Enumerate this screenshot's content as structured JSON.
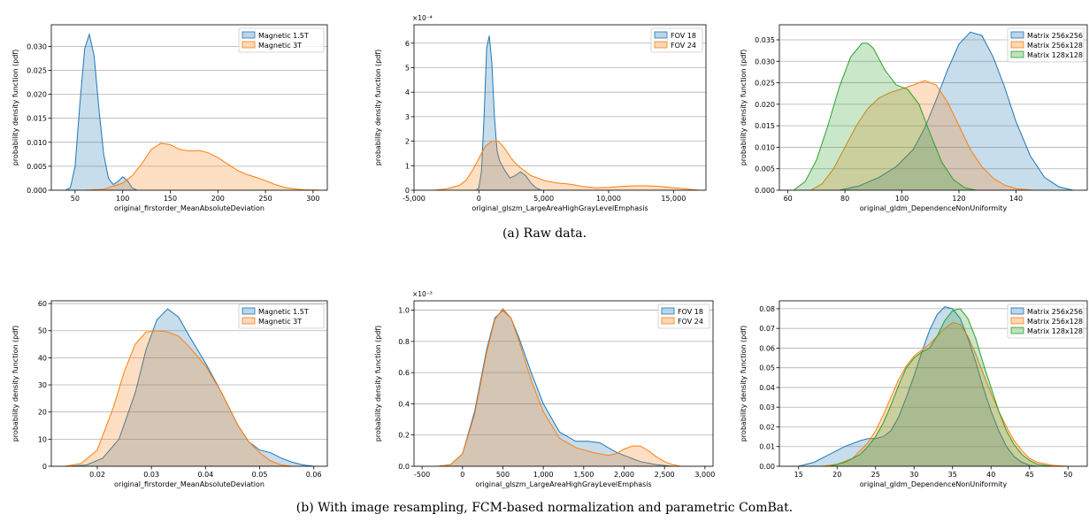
{
  "captions": {
    "a": "(a) Raw data.",
    "b": "(b) With image resampling, FCM-based normalization and parametric ComBat."
  },
  "chart_data": [
    {
      "type": "area",
      "xlabel": "original_firstorder_MeanAbsoluteDeviation",
      "ylabel": "probability density function (pdf)",
      "xlim": [
        25,
        315
      ],
      "ylim": [
        0,
        0.0345
      ],
      "xticks": [
        50,
        100,
        150,
        200,
        250,
        300
      ],
      "xtick_labels": [
        "50",
        "100",
        "150",
        "200",
        "250",
        "300"
      ],
      "yticks": [
        0,
        0.005,
        0.01,
        0.015,
        0.02,
        0.025,
        0.03
      ],
      "ytick_labels": [
        "0.000",
        "0.005",
        "0.010",
        "0.015",
        "0.020",
        "0.025",
        "0.030"
      ],
      "y_multiplier": "",
      "grid": "horizontal",
      "legend_position": "top-right",
      "series": [
        {
          "name": "Magnetic 1.5T",
          "color": "#1f77b4",
          "x": [
            40,
            45,
            50,
            55,
            60,
            65,
            70,
            75,
            80,
            85,
            90,
            95,
            100,
            105,
            110,
            115
          ],
          "y": [
            0,
            0.0005,
            0.005,
            0.018,
            0.0295,
            0.0325,
            0.028,
            0.017,
            0.0075,
            0.0025,
            0.0012,
            0.0018,
            0.0028,
            0.002,
            0.0005,
            0
          ]
        },
        {
          "name": "Magnetic 3T",
          "color": "#ff7f0e",
          "x": [
            60,
            80,
            100,
            110,
            120,
            130,
            140,
            150,
            160,
            170,
            180,
            190,
            200,
            210,
            220,
            230,
            240,
            250,
            260,
            270,
            280,
            290,
            300,
            310
          ],
          "y": [
            0,
            0.0002,
            0.0015,
            0.003,
            0.0055,
            0.0085,
            0.0098,
            0.0095,
            0.0085,
            0.0082,
            0.0083,
            0.0078,
            0.0068,
            0.0055,
            0.0042,
            0.0033,
            0.0027,
            0.002,
            0.0012,
            0.0006,
            0.0003,
            0.0001,
            3e-05,
            0
          ]
        }
      ]
    },
    {
      "type": "area",
      "xlabel": "original_glszm_LargeAreaHighGrayLevelEmphasis",
      "ylabel": "probability density function (pdf)",
      "xlim": [
        -5000,
        17500
      ],
      "ylim": [
        0,
        6.75
      ],
      "xticks": [
        -5000,
        0,
        5000,
        10000,
        15000
      ],
      "xtick_labels": [
        "-5,000",
        "0",
        "5,000",
        "10,000",
        "15,000"
      ],
      "yticks": [
        0,
        1,
        2,
        3,
        4,
        5,
        6
      ],
      "ytick_labels": [
        "0",
        "1",
        "2",
        "3",
        "4",
        "5",
        "6"
      ],
      "y_multiplier": "×10⁻⁴",
      "grid": "horizontal",
      "legend_position": "top-right",
      "series": [
        {
          "name": "FOV 18",
          "color": "#1f77b4",
          "x": [
            -200,
            0,
            200,
            400,
            600,
            800,
            1000,
            1200,
            1400,
            1600,
            1800,
            2000,
            2400,
            2800,
            3200,
            3600,
            4000,
            4400,
            4800
          ],
          "y": [
            0,
            0.1,
            0.8,
            3.0,
            5.8,
            6.3,
            5.2,
            3.0,
            1.6,
            1.2,
            1.0,
            0.8,
            0.5,
            0.6,
            0.75,
            0.6,
            0.3,
            0.1,
            0
          ]
        },
        {
          "name": "FOV 24",
          "color": "#ff7f0e",
          "x": [
            -3500,
            -2500,
            -1500,
            -1000,
            -500,
            0,
            500,
            1000,
            1500,
            2000,
            2500,
            3000,
            4000,
            5000,
            6000,
            7000,
            8000,
            9000,
            10000,
            11000,
            12000,
            13000,
            14000,
            15000,
            16000,
            17000
          ],
          "y": [
            0,
            0.05,
            0.2,
            0.4,
            0.8,
            1.3,
            1.8,
            2.0,
            2.0,
            1.7,
            1.3,
            1.0,
            0.6,
            0.4,
            0.3,
            0.25,
            0.15,
            0.1,
            0.12,
            0.15,
            0.18,
            0.18,
            0.15,
            0.1,
            0.05,
            0
          ]
        }
      ]
    },
    {
      "type": "area",
      "xlabel": "original_gldm_DependenceNonUniformity",
      "ylabel": "probability density function (pdf)",
      "xlim": [
        57,
        165
      ],
      "ylim": [
        0,
        0.0385
      ],
      "xticks": [
        60,
        80,
        100,
        120,
        140
      ],
      "xtick_labels": [
        "60",
        "80",
        "100",
        "120",
        "140"
      ],
      "yticks": [
        0,
        0.005,
        0.01,
        0.015,
        0.02,
        0.025,
        0.03,
        0.035
      ],
      "ytick_labels": [
        "0.000",
        "0.005",
        "0.010",
        "0.015",
        "0.020",
        "0.025",
        "0.030",
        "0.035"
      ],
      "y_multiplier": "",
      "grid": "horizontal",
      "legend_position": "top-right",
      "series": [
        {
          "name": "Matrix 256x256",
          "color": "#1f77b4",
          "x": [
            78,
            85,
            92,
            98,
            104,
            108,
            112,
            116,
            120,
            124,
            128,
            132,
            136,
            140,
            145,
            150,
            155,
            160
          ],
          "y": [
            0,
            0.001,
            0.003,
            0.0055,
            0.0095,
            0.0145,
            0.021,
            0.028,
            0.034,
            0.0368,
            0.036,
            0.031,
            0.024,
            0.016,
            0.008,
            0.003,
            0.0008,
            0
          ]
        },
        {
          "name": "Matrix 256x128",
          "color": "#ff7f0e",
          "x": [
            68,
            72,
            76,
            80,
            84,
            88,
            92,
            96,
            100,
            104,
            108,
            112,
            116,
            120,
            124,
            128,
            132,
            136,
            140,
            146
          ],
          "y": [
            0,
            0.0015,
            0.005,
            0.01,
            0.015,
            0.019,
            0.0215,
            0.0228,
            0.0236,
            0.0245,
            0.0255,
            0.0245,
            0.0205,
            0.015,
            0.0095,
            0.0055,
            0.0028,
            0.0012,
            0.0004,
            0
          ]
        },
        {
          "name": "Matrix 128x128",
          "color": "#2ca02c",
          "x": [
            62,
            66,
            70,
            74,
            78,
            82,
            86,
            88,
            90,
            94,
            98,
            102,
            106,
            110,
            114,
            118,
            122,
            126
          ],
          "y": [
            0,
            0.002,
            0.007,
            0.015,
            0.024,
            0.031,
            0.0342,
            0.0342,
            0.033,
            0.028,
            0.0245,
            0.0235,
            0.02,
            0.013,
            0.0065,
            0.0025,
            0.0006,
            0
          ]
        }
      ]
    },
    {
      "type": "area",
      "xlabel": "original_firstorder_MeanAbsoluteDeviation",
      "ylabel": "probability density function (pdf)",
      "xlim": [
        0.0115,
        0.0625
      ],
      "ylim": [
        0,
        61
      ],
      "xticks": [
        0.02,
        0.03,
        0.04,
        0.05,
        0.06
      ],
      "xtick_labels": [
        "0.02",
        "0.03",
        "0.04",
        "0.05",
        "0.06"
      ],
      "yticks": [
        0,
        10,
        20,
        30,
        40,
        50,
        60
      ],
      "ytick_labels": [
        "0",
        "10",
        "20",
        "30",
        "40",
        "50",
        "60"
      ],
      "y_multiplier": "",
      "grid": "horizontal",
      "legend_position": "top-right",
      "series": [
        {
          "name": "Magnetic 1.5T",
          "color": "#1f77b4",
          "x": [
            0.015,
            0.018,
            0.021,
            0.024,
            0.027,
            0.029,
            0.031,
            0.033,
            0.035,
            0.037,
            0.04,
            0.043,
            0.046,
            0.048,
            0.05,
            0.052,
            0.054,
            0.056,
            0.058,
            0.06
          ],
          "y": [
            0,
            0.5,
            3,
            10,
            27,
            43,
            54,
            58,
            55,
            48,
            38,
            27,
            15,
            9,
            6,
            5,
            3,
            1.5,
            0.5,
            0
          ]
        },
        {
          "name": "Magnetic 3T",
          "color": "#ff7f0e",
          "x": [
            0.014,
            0.017,
            0.02,
            0.023,
            0.025,
            0.027,
            0.029,
            0.031,
            0.033,
            0.035,
            0.037,
            0.04,
            0.043,
            0.046,
            0.048,
            0.05,
            0.052,
            0.054,
            0.056
          ],
          "y": [
            0,
            1,
            6,
            22,
            35,
            45,
            49.5,
            50,
            49.5,
            48,
            44,
            37,
            27,
            15,
            9,
            5,
            2,
            0.5,
            0
          ]
        }
      ]
    },
    {
      "type": "area",
      "xlabel": "original_glszm_LargeAreaHighGrayLevelEmphasis",
      "ylabel": "probability density function (pdf)",
      "xlim": [
        -600,
        3100
      ],
      "ylim": [
        0,
        1.06
      ],
      "xticks": [
        -500,
        0,
        500,
        1000,
        1500,
        2000,
        2500,
        3000
      ],
      "xtick_labels": [
        "-500",
        "0",
        "500",
        "1,000",
        "1,500",
        "2,000",
        "2,500",
        "3,000"
      ],
      "yticks": [
        0,
        0.2,
        0.4,
        0.6,
        0.8,
        1.0
      ],
      "ytick_labels": [
        "0.0",
        "0.2",
        "0.4",
        "0.6",
        "0.8",
        "1.0"
      ],
      "y_multiplier": "×10⁻³",
      "grid": "horizontal",
      "legend_position": "top-right",
      "series": [
        {
          "name": "FOV 18",
          "color": "#1f77b4",
          "x": [
            -300,
            -150,
            0,
            150,
            300,
            400,
            500,
            600,
            700,
            850,
            1000,
            1200,
            1400,
            1550,
            1700,
            1800,
            1900,
            2000,
            2100,
            2200,
            2400,
            2600
          ],
          "y": [
            0,
            0.01,
            0.08,
            0.35,
            0.75,
            0.95,
            1.0,
            0.95,
            0.82,
            0.6,
            0.4,
            0.22,
            0.16,
            0.16,
            0.15,
            0.12,
            0.09,
            0.07,
            0.05,
            0.03,
            0.01,
            0
          ]
        },
        {
          "name": "FOV 24",
          "color": "#ff7f0e",
          "x": [
            -300,
            -150,
            0,
            150,
            300,
            400,
            500,
            600,
            700,
            850,
            1000,
            1200,
            1400,
            1600,
            1800,
            1900,
            2000,
            2100,
            2200,
            2300,
            2400,
            2500,
            2600,
            2700
          ],
          "y": [
            0,
            0.01,
            0.08,
            0.33,
            0.73,
            0.94,
            1.01,
            0.95,
            0.8,
            0.55,
            0.35,
            0.18,
            0.12,
            0.09,
            0.07,
            0.08,
            0.11,
            0.13,
            0.13,
            0.1,
            0.06,
            0.03,
            0.01,
            0
          ]
        }
      ]
    },
    {
      "type": "area",
      "xlabel": "original_gldm_DependenceNonUniformity",
      "ylabel": "probability density function (pdf)",
      "xlim": [
        12.5,
        52.5
      ],
      "ylim": [
        0,
        0.084
      ],
      "xticks": [
        15,
        20,
        25,
        30,
        35,
        40,
        45,
        50
      ],
      "xtick_labels": [
        "15",
        "20",
        "25",
        "30",
        "35",
        "40",
        "45",
        "50"
      ],
      "yticks": [
        0,
        0.01,
        0.02,
        0.03,
        0.04,
        0.05,
        0.06,
        0.07,
        0.08
      ],
      "ytick_labels": [
        "0.00",
        "0.01",
        "0.02",
        "0.03",
        "0.04",
        "0.05",
        "0.06",
        "0.07",
        "0.08"
      ],
      "y_multiplier": "",
      "grid": "horizontal",
      "legend_position": "top-right",
      "series": [
        {
          "name": "Matrix 256x256",
          "color": "#1f77b4",
          "x": [
            15,
            17,
            19,
            21,
            23,
            24,
            25,
            26,
            27,
            28,
            29,
            30,
            31,
            32,
            33,
            34,
            35,
            36,
            37,
            38,
            39,
            40,
            41,
            42,
            43,
            44,
            45,
            46
          ],
          "y": [
            0,
            0.002,
            0.006,
            0.01,
            0.013,
            0.014,
            0.014,
            0.015,
            0.018,
            0.025,
            0.035,
            0.046,
            0.058,
            0.069,
            0.077,
            0.081,
            0.08,
            0.075,
            0.065,
            0.053,
            0.04,
            0.028,
            0.018,
            0.01,
            0.005,
            0.002,
            0.0005,
            0
          ]
        },
        {
          "name": "Matrix 256x128",
          "color": "#ff7f0e",
          "x": [
            18,
            20,
            22,
            24,
            25,
            26,
            27,
            28,
            29,
            30,
            31,
            32,
            33,
            34,
            35,
            36,
            37,
            38,
            39,
            40,
            41,
            42,
            43,
            44,
            45,
            46,
            48,
            50
          ],
          "y": [
            0,
            0.001,
            0.004,
            0.012,
            0.018,
            0.026,
            0.035,
            0.044,
            0.051,
            0.056,
            0.059,
            0.062,
            0.066,
            0.07,
            0.073,
            0.072,
            0.066,
            0.057,
            0.047,
            0.037,
            0.028,
            0.02,
            0.013,
            0.008,
            0.004,
            0.002,
            0.0005,
            0
          ]
        },
        {
          "name": "Matrix 128x128",
          "color": "#2ca02c",
          "x": [
            19,
            21,
            23,
            24,
            25,
            26,
            27,
            28,
            29,
            30,
            31,
            32,
            33,
            34,
            35,
            36,
            37,
            38,
            39,
            40,
            41,
            42,
            43,
            44,
            45,
            46,
            48
          ],
          "y": [
            0,
            0.002,
            0.006,
            0.01,
            0.015,
            0.022,
            0.031,
            0.041,
            0.05,
            0.055,
            0.058,
            0.06,
            0.066,
            0.074,
            0.079,
            0.08,
            0.075,
            0.065,
            0.052,
            0.04,
            0.028,
            0.018,
            0.011,
            0.006,
            0.003,
            0.001,
            0
          ]
        }
      ]
    }
  ]
}
